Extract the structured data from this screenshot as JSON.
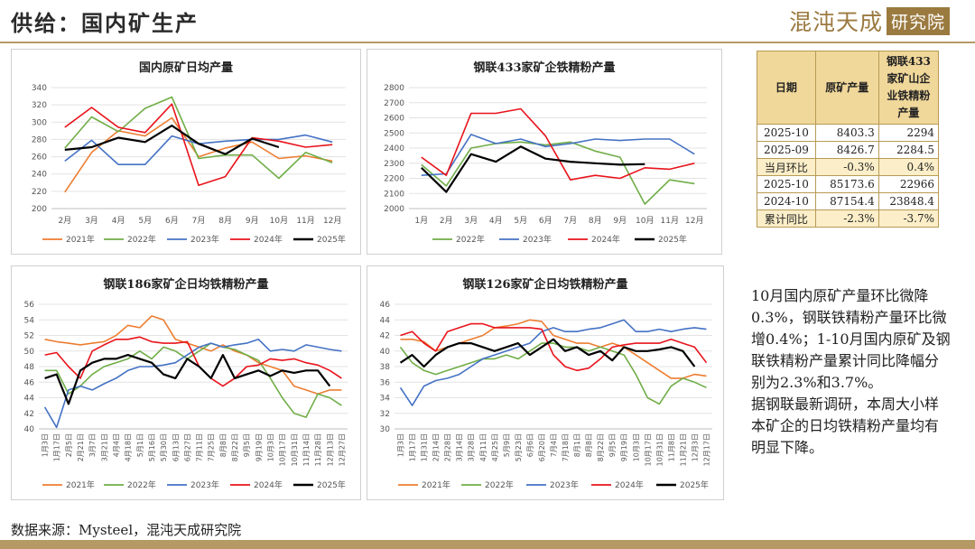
{
  "header": {
    "title": "供给：国内矿生产",
    "logo_text": "混沌天成",
    "logo_badge": "研究院"
  },
  "source": "数据来源：Mysteel，混沌天成研究院",
  "colors": {
    "2021年": "#ed7d31",
    "2022年": "#70ad47",
    "2023年": "#4472c4",
    "2024年": "#e8131b",
    "2025年": "#000000"
  },
  "chart_data": [
    {
      "type": "line",
      "title": "国内原矿日均产量",
      "categories": [
        "2月",
        "3月",
        "4月",
        "5月",
        "6月",
        "7月",
        "8月",
        "9月",
        "10月",
        "11月",
        "12月"
      ],
      "ylim": [
        200,
        340
      ],
      "yticks": [
        200,
        220,
        240,
        260,
        280,
        300,
        320,
        340
      ],
      "series": [
        {
          "name": "2021年",
          "values": [
            219,
            265,
            290,
            284,
            305,
            260,
            270,
            277,
            258,
            261,
            255
          ]
        },
        {
          "name": "2022年",
          "values": [
            270,
            306,
            289,
            316,
            329,
            258,
            262,
            262,
            235,
            265,
            253
          ]
        },
        {
          "name": "2023年",
          "values": [
            255,
            279,
            251,
            251,
            284,
            275,
            278,
            280,
            280,
            285,
            277
          ]
        },
        {
          "name": "2024年",
          "values": [
            294,
            317,
            294,
            288,
            321,
            227,
            237,
            282,
            278,
            271,
            274
          ]
        },
        {
          "name": "2025年",
          "values": [
            268,
            271,
            282,
            277,
            296,
            275,
            263,
            281,
            271,
            null,
            null
          ]
        }
      ]
    },
    {
      "type": "line",
      "title": "钢联433家矿企铁精粉产量",
      "categories": [
        "1月",
        "2月",
        "3月",
        "4月",
        "5月",
        "6月",
        "7月",
        "8月",
        "9月",
        "10月",
        "11月",
        "12月"
      ],
      "ylim": [
        2000,
        2800
      ],
      "yticks": [
        2000,
        2100,
        2200,
        2300,
        2400,
        2500,
        2600,
        2700,
        2800
      ],
      "series": [
        {
          "name": "2022年",
          "values": [
            2290,
            2150,
            2400,
            2430,
            2440,
            2420,
            2440,
            2380,
            2340,
            2030,
            2190,
            2165
          ]
        },
        {
          "name": "2023年",
          "values": [
            2220,
            2230,
            2490,
            2430,
            2460,
            2410,
            2430,
            2460,
            2450,
            2460,
            2460,
            2360
          ]
        },
        {
          "name": "2024年",
          "values": [
            2340,
            2220,
            2630,
            2630,
            2660,
            2480,
            2190,
            2220,
            2200,
            2270,
            2260,
            2300
          ]
        },
        {
          "name": "2025年",
          "values": [
            2270,
            2110,
            2360,
            2310,
            2410,
            2330,
            2310,
            2300,
            2290,
            2294,
            null,
            null
          ]
        }
      ]
    },
    {
      "type": "line",
      "title": "钢联186家矿企日均铁精粉产量",
      "x_labels": [
        "1月3日",
        "1月17日",
        "2月5日",
        "2月21日",
        "3月7日",
        "3月21日",
        "4月4日",
        "4月18日",
        "5月1日",
        "5月16日",
        "5月30日",
        "6月13日",
        "6月27日",
        "7月11日",
        "7月25日",
        "8月8日",
        "8月22日",
        "9月5日",
        "9月19日",
        "10月3日",
        "10月17日",
        "10月31日",
        "11月14日",
        "11月28日",
        "12月13日",
        "12月27日"
      ],
      "ylim": [
        40,
        56
      ],
      "yticks": [
        40,
        42,
        44,
        46,
        48,
        50,
        52,
        54,
        56
      ],
      "series": [
        {
          "name": "2021年",
          "values": [
            51.5,
            51.2,
            51.0,
            50.8,
            51.0,
            51.2,
            52.0,
            53.3,
            53.0,
            54.5,
            54.0,
            51.5,
            51.0,
            50.5,
            50.0,
            50.8,
            50.0,
            49.5,
            48.5,
            48.0,
            47.5,
            45.5,
            45.0,
            44.5,
            45.0,
            45.0
          ]
        },
        {
          "name": "2022年",
          "values": [
            47.5,
            47.5,
            44.5,
            45.5,
            47.0,
            48.0,
            48.5,
            49.0,
            50.0,
            49.0,
            50.5,
            50.0,
            49.0,
            50.0,
            51.0,
            50.5,
            50.2,
            49.5,
            48.8,
            46.5,
            44.0,
            42.0,
            41.5,
            44.5,
            44.0,
            43.0
          ]
        },
        {
          "name": "2023年",
          "values": [
            42.8,
            40.2,
            45.0,
            45.5,
            45.0,
            45.8,
            46.5,
            47.5,
            48.0,
            48.0,
            48.2,
            48.5,
            49.5,
            50.5,
            51.0,
            50.5,
            50.8,
            51.0,
            51.5,
            50.0,
            50.2,
            50.0,
            50.8,
            50.5,
            50.2,
            50.0
          ]
        },
        {
          "name": "2024年",
          "values": [
            49.5,
            49.8,
            48.0,
            46.5,
            50.0,
            50.8,
            51.5,
            51.5,
            51.8,
            51.2,
            51.0,
            51.0,
            51.2,
            48.0,
            46.5,
            45.5,
            46.5,
            48.0,
            48.2,
            49.0,
            48.8,
            49.0,
            48.5,
            48.2,
            47.5,
            46.5
          ]
        },
        {
          "name": "2025年",
          "values": [
            46.5,
            47.0,
            43.2,
            47.5,
            48.5,
            49.0,
            49.0,
            49.5,
            49.0,
            48.5,
            47.0,
            46.5,
            49.0,
            48.0,
            46.5,
            49.5,
            46.5,
            47.0,
            47.5,
            46.8,
            47.5,
            47.2,
            47.5,
            47.5,
            45.5,
            null
          ]
        }
      ]
    },
    {
      "type": "line",
      "title": "钢联126家矿企日均铁精粉产量",
      "x_labels": [
        "1月3日",
        "1月17日",
        "1月31日",
        "2月14日",
        "2月28日",
        "3月14日",
        "3月28日",
        "4月11日",
        "4月25日",
        "5月9日",
        "5月23日",
        "6月6日",
        "6月20日",
        "7月4日",
        "7月18日",
        "8月1日",
        "8月8日",
        "8月22日",
        "9月5日",
        "9月19日",
        "10月3日",
        "10月17日",
        "10月31日",
        "11月8日",
        "11月21日",
        "12月3日",
        "12月17日"
      ],
      "ylim": [
        30,
        46
      ],
      "yticks": [
        30,
        32,
        34,
        36,
        38,
        40,
        42,
        44,
        46
      ],
      "series": [
        {
          "name": "2021年",
          "values": [
            41.5,
            41.5,
            41.2,
            40.0,
            40.5,
            41.0,
            41.5,
            42.0,
            43.0,
            43.2,
            43.5,
            44.0,
            43.8,
            42.0,
            41.5,
            41.0,
            41.0,
            40.5,
            41.0,
            40.5,
            39.5,
            38.5,
            37.5,
            36.5,
            36.5,
            37.0,
            36.8
          ]
        },
        {
          "name": "2022年",
          "values": [
            40.5,
            38.5,
            37.5,
            37.0,
            37.5,
            38.0,
            38.5,
            39.0,
            39.0,
            39.5,
            39.0,
            40.0,
            41.0,
            41.0,
            40.5,
            40.5,
            40.0,
            40.5,
            40.0,
            39.5,
            37.0,
            34.0,
            33.2,
            35.5,
            36.5,
            36.0,
            35.3
          ]
        },
        {
          "name": "2023年",
          "values": [
            35.3,
            33.0,
            35.5,
            36.2,
            36.5,
            37.0,
            38.0,
            39.0,
            39.5,
            40.0,
            40.5,
            41.0,
            42.5,
            43.0,
            42.5,
            42.5,
            42.8,
            43.0,
            43.5,
            44.0,
            42.5,
            42.5,
            42.8,
            42.5,
            42.8,
            43.0,
            42.8
          ]
        },
        {
          "name": "2024年",
          "values": [
            42.0,
            42.5,
            41.0,
            40.0,
            42.5,
            43.0,
            43.5,
            43.5,
            43.0,
            43.0,
            43.0,
            43.0,
            42.8,
            39.5,
            38.0,
            37.5,
            37.8,
            39.0,
            40.5,
            40.8,
            41.0,
            41.0,
            41.0,
            41.5,
            41.0,
            40.5,
            38.5
          ]
        },
        {
          "name": "2025年",
          "values": [
            38.5,
            39.5,
            38.0,
            39.5,
            40.5,
            41.0,
            41.0,
            40.5,
            40.0,
            40.5,
            41.0,
            39.5,
            40.5,
            41.5,
            40.0,
            40.5,
            39.5,
            40.0,
            38.8,
            40.5,
            40.0,
            40.0,
            40.2,
            40.5,
            40.0,
            38.0,
            null
          ]
        }
      ]
    }
  ],
  "table": {
    "headers": [
      "日期",
      "原矿产量",
      "钢联433家矿山企业铁精粉产量"
    ],
    "rows": [
      {
        "label": "2025-10",
        "a": "8403.3",
        "b": "2294",
        "highlight": false
      },
      {
        "label": "2025-09",
        "a": "8426.7",
        "b": "2284.5",
        "highlight": false
      },
      {
        "label": "当月环比",
        "a": "-0.3%",
        "b": "0.4%",
        "highlight": true
      },
      {
        "label": "2025-10",
        "a": "85173.6",
        "b": "22966",
        "highlight": false
      },
      {
        "label": "2024-10",
        "a": "87154.4",
        "b": "23848.4",
        "highlight": false
      },
      {
        "label": "累计同比",
        "a": "-2.3%",
        "b": "-3.7%",
        "highlight": true
      }
    ]
  },
  "notes": [
    "10月国内原矿产量环比微降0.3%，钢联铁精粉产量环比微增0.4%；1-10月国内原矿及钢联铁精粉产量累计同比降幅分别为2.3%和3.7%。",
    "据钢联最新调研，本周大小样本矿企的日均铁精粉产量均有明显下降。"
  ]
}
